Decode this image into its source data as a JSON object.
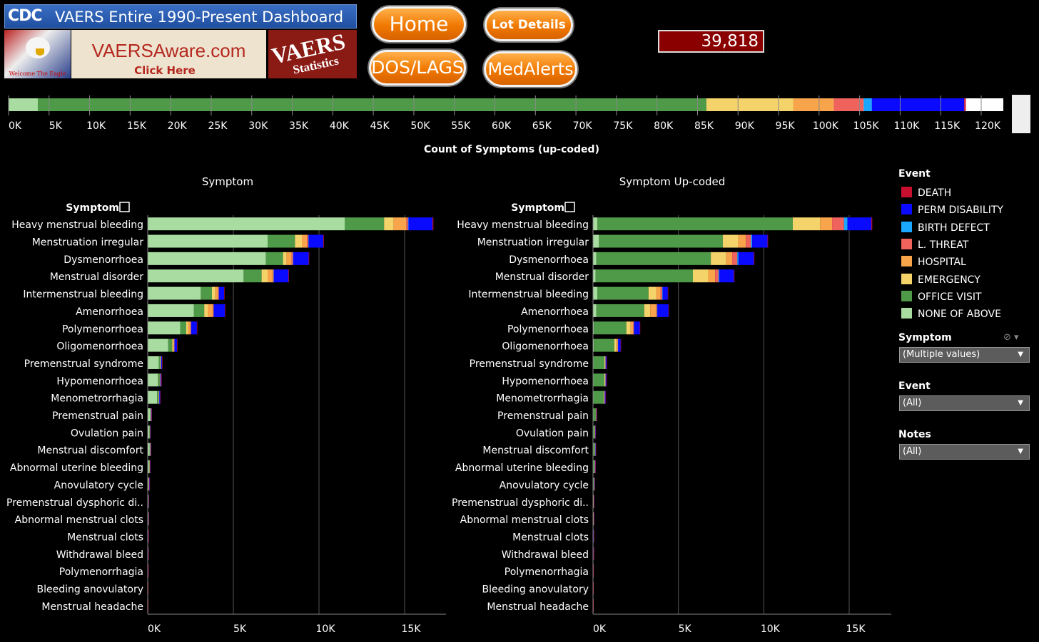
{
  "header": {
    "cdc_logo": "CDC",
    "title": "VAERS Entire 1990-Present Dashboard",
    "eagle_caption": "Welcome The Eagle",
    "aware_site": "VAERSAware.com",
    "aware_click": "Click Here",
    "vaers_logo_word": "VAERS",
    "vaers_logo_sub": "Statistics"
  },
  "nav": {
    "home": "Home",
    "lot_details": "Lot Details",
    "dos_lags": "DOS/LAGS",
    "medalerts": "MedAlerts"
  },
  "record_count": "39,818",
  "colors": {
    "DEATH": "#c8102e",
    "PERM DISABILITY": "#0a0aff",
    "BIRTH DEFECT": "#1aa7ff",
    "L. THREAT": "#f0625c",
    "HOSPITAL": "#f7a44a",
    "EMERGENCY": "#f5d36b",
    "OFFICE VISIT": "#4f9a48",
    "NONE OF ABOVE": "#a8dca0"
  },
  "legend": {
    "title": "Event",
    "items": [
      "DEATH",
      "PERM DISABILITY",
      "BIRTH DEFECT",
      "L. THREAT",
      "HOSPITAL",
      "EMERGENCY",
      "OFFICE VISIT",
      "NONE OF ABOVE"
    ]
  },
  "filters": [
    {
      "label": "Symptom",
      "value": "(Multiple values)"
    },
    {
      "label": "Event",
      "value": "(All)"
    },
    {
      "label": "Notes",
      "value": "(All)"
    }
  ],
  "chart_data": [
    {
      "type": "bar",
      "orientation": "horizontal",
      "stacked": true,
      "xlabel": "Count of Symptoms (up-coded)",
      "xlim": [
        0,
        122000
      ],
      "xticks": [
        "0K",
        "5K",
        "10K",
        "15K",
        "20K",
        "25K",
        "30K",
        "35K",
        "40K",
        "45K",
        "50K",
        "55K",
        "60K",
        "65K",
        "70K",
        "75K",
        "80K",
        "85K",
        "90K",
        "95K",
        "100K",
        "105K",
        "110K",
        "115K",
        "120K"
      ],
      "series": [
        {
          "name": "NONE OF ABOVE",
          "values": [
            3600
          ]
        },
        {
          "name": "OFFICE VISIT",
          "values": [
            82500
          ]
        },
        {
          "name": "EMERGENCY",
          "values": [
            10700
          ]
        },
        {
          "name": "HOSPITAL",
          "values": [
            5000
          ]
        },
        {
          "name": "L. THREAT",
          "values": [
            3700
          ]
        },
        {
          "name": "BIRTH DEFECT",
          "values": [
            1000
          ]
        },
        {
          "name": "PERM DISABILITY",
          "values": [
            11400
          ]
        },
        {
          "name": "DEATH",
          "values": [
            200
          ]
        }
      ]
    },
    {
      "type": "bar",
      "orientation": "horizontal",
      "stacked": true,
      "title": "Symptom",
      "header": "Symptom",
      "xlim": [
        0,
        17500
      ],
      "xticks": [
        "0K",
        "5K",
        "10K",
        "15K"
      ],
      "categories": [
        "Heavy menstrual bleeding",
        "Menstruation irregular",
        "Dysmenorrhoea",
        "Menstrual disorder",
        "Intermenstrual bleeding",
        "Amenorrhoea",
        "Polymenorrhoea",
        "Oligomenorrhoea",
        "Premenstrual syndrome",
        "Hypomenorrhoea",
        "Menometrorrhagia",
        "Premenstrual pain",
        "Ovulation pain",
        "Menstrual discomfort",
        "Abnormal uterine bleeding",
        "Anovulatory cycle",
        "Premenstrual dysphoric di..",
        "Abnormal menstrual clots",
        "Menstrual clots",
        "Withdrawal bleed",
        "Polymenorrhagia",
        "Bleeding anovulatory",
        "Menstrual headache"
      ],
      "series": [
        {
          "name": "NONE OF ABOVE",
          "values": [
            11500,
            7000,
            6900,
            5600,
            3100,
            2700,
            1900,
            1200,
            650,
            600,
            550,
            150,
            100,
            120,
            80,
            50,
            30,
            30,
            20,
            15,
            10,
            5,
            5
          ]
        },
        {
          "name": "OFFICE VISIT",
          "values": [
            2300,
            1600,
            1000,
            1050,
            650,
            600,
            350,
            230,
            80,
            100,
            80,
            30,
            20,
            20,
            20,
            20,
            10,
            10,
            5,
            5,
            5,
            3,
            3
          ]
        },
        {
          "name": "EMERGENCY",
          "values": [
            550,
            400,
            200,
            350,
            200,
            200,
            100,
            60,
            20,
            20,
            20,
            10,
            5,
            10,
            10,
            5,
            3,
            3,
            2,
            2,
            2,
            1,
            1
          ]
        },
        {
          "name": "HOSPITAL",
          "values": [
            750,
            300,
            300,
            300,
            150,
            300,
            130,
            50,
            20,
            20,
            20,
            10,
            5,
            10,
            10,
            5,
            3,
            3,
            2,
            2,
            2,
            1,
            1
          ]
        },
        {
          "name": "L. THREAT",
          "values": [
            100,
            80,
            80,
            50,
            50,
            50,
            50,
            20,
            5,
            5,
            5,
            3,
            2,
            2,
            2,
            2,
            1,
            1,
            1,
            1,
            1,
            1,
            1
          ]
        },
        {
          "name": "BIRTH DEFECT",
          "values": [
            30,
            20,
            20,
            20,
            10,
            10,
            10,
            5,
            2,
            2,
            2,
            1,
            1,
            1,
            1,
            1,
            1,
            1,
            1,
            1,
            1,
            1,
            1
          ]
        },
        {
          "name": "PERM DISABILITY",
          "values": [
            1400,
            850,
            900,
            850,
            300,
            650,
            330,
            150,
            60,
            50,
            50,
            20,
            20,
            20,
            20,
            20,
            10,
            10,
            10,
            5,
            5,
            5,
            5
          ]
        },
        {
          "name": "DEATH",
          "values": [
            50,
            30,
            30,
            30,
            20,
            20,
            20,
            10,
            3,
            3,
            3,
            2,
            2,
            2,
            2,
            1,
            1,
            1,
            1,
            1,
            1,
            1,
            1
          ]
        }
      ]
    },
    {
      "type": "bar",
      "orientation": "horizontal",
      "stacked": true,
      "title": "Symptom Up-coded",
      "header": "Symptom",
      "xlim": [
        0,
        17500
      ],
      "xticks": [
        "0K",
        "5K",
        "10K",
        "15K"
      ],
      "categories": [
        "Heavy menstrual bleeding",
        "Menstruation irregular",
        "Dysmenorrhoea",
        "Menstrual disorder",
        "Intermenstrual bleeding",
        "Amenorrhoea",
        "Polymenorrhoea",
        "Oligomenorrhoea",
        "Premenstrual syndrome",
        "Hypomenorrhoea",
        "Menometrorrhagia",
        "Premenstrual pain",
        "Ovulation pain",
        "Menstrual discomfort",
        "Abnormal uterine bleeding",
        "Anovulatory cycle",
        "Premenstrual dysphoric di..",
        "Abnormal menstrual clots",
        "Menstrual clots",
        "Withdrawal bleed",
        "Polymenorrhagia",
        "Bleeding anovulatory",
        "Menstrual headache"
      ],
      "series": [
        {
          "name": "NONE OF ABOVE",
          "values": [
            250,
            350,
            200,
            150,
            250,
            200,
            50,
            50,
            20,
            20,
            20,
            10,
            10,
            10,
            10,
            5,
            3,
            3,
            2,
            2,
            2,
            1,
            1
          ]
        },
        {
          "name": "OFFICE VISIT",
          "values": [
            11450,
            7250,
            6700,
            5700,
            3000,
            2800,
            1900,
            1200,
            650,
            650,
            600,
            150,
            100,
            100,
            80,
            50,
            30,
            30,
            20,
            15,
            10,
            5,
            5
          ]
        },
        {
          "name": "EMERGENCY",
          "values": [
            1600,
            900,
            900,
            900,
            450,
            350,
            250,
            120,
            40,
            40,
            40,
            15,
            10,
            15,
            15,
            10,
            5,
            5,
            3,
            3,
            3,
            2,
            2
          ]
        },
        {
          "name": "HOSPITAL",
          "values": [
            700,
            450,
            350,
            400,
            250,
            350,
            140,
            70,
            20,
            20,
            20,
            10,
            5,
            10,
            10,
            5,
            3,
            3,
            2,
            2,
            2,
            1,
            1
          ]
        },
        {
          "name": "L. THREAT",
          "values": [
            700,
            300,
            300,
            200,
            100,
            50,
            50,
            20,
            5,
            5,
            5,
            3,
            2,
            2,
            2,
            2,
            1,
            1,
            1,
            1,
            1,
            1,
            1
          ]
        },
        {
          "name": "BIRTH DEFECT",
          "values": [
            200,
            70,
            70,
            50,
            30,
            20,
            20,
            10,
            2,
            2,
            2,
            1,
            1,
            1,
            1,
            1,
            1,
            1,
            1,
            1,
            1,
            1,
            1
          ]
        },
        {
          "name": "PERM DISABILITY",
          "values": [
            1400,
            900,
            900,
            850,
            300,
            650,
            330,
            150,
            60,
            50,
            50,
            20,
            20,
            20,
            20,
            20,
            10,
            10,
            10,
            5,
            5,
            5,
            5
          ]
        },
        {
          "name": "DEATH",
          "values": [
            50,
            30,
            30,
            30,
            20,
            20,
            20,
            10,
            3,
            3,
            3,
            2,
            2,
            2,
            2,
            1,
            1,
            1,
            1,
            1,
            1,
            1,
            1
          ]
        }
      ]
    }
  ]
}
